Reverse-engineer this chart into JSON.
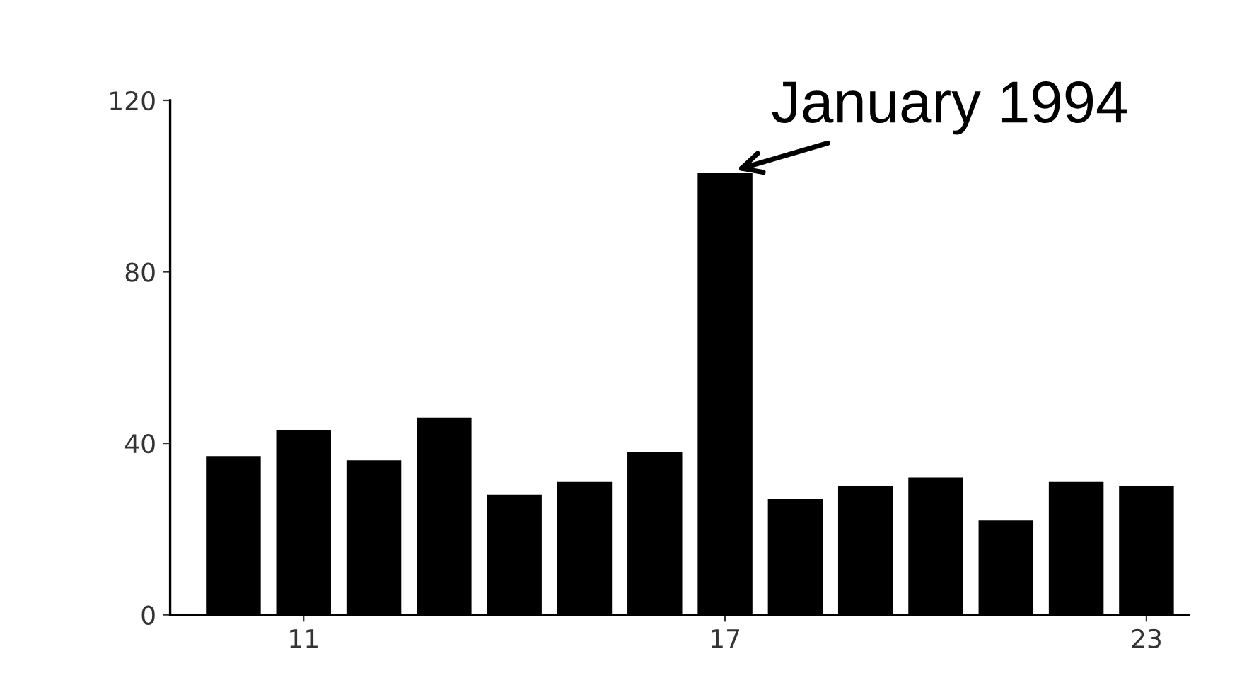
{
  "chart_data": {
    "type": "bar",
    "x": [
      10,
      11,
      12,
      13,
      14,
      15,
      16,
      17,
      18,
      19,
      20,
      21,
      22,
      23
    ],
    "values": [
      37,
      43,
      36,
      46,
      28,
      31,
      38,
      103,
      27,
      30,
      32,
      22,
      31,
      30
    ],
    "color": "#000000",
    "xlim": [
      9.1,
      23.6
    ],
    "ylim": [
      0,
      120
    ],
    "xticks": [
      11,
      17,
      23
    ],
    "yticks": [
      0,
      40,
      80,
      120
    ],
    "grid": false,
    "legend": false,
    "annotations": [
      {
        "text": "January 1994",
        "x": 17,
        "y": 103
      }
    ]
  }
}
